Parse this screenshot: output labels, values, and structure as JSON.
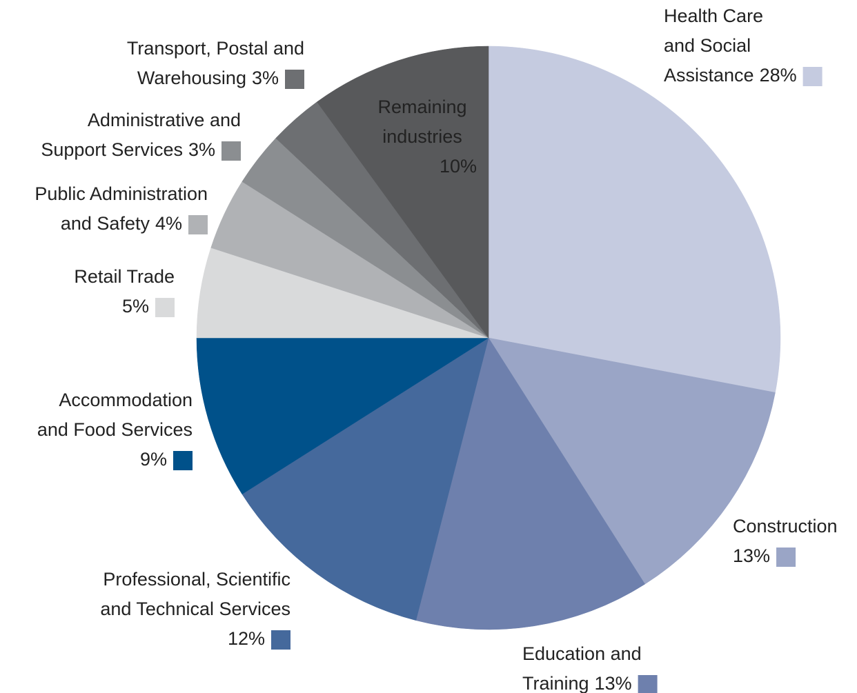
{
  "chart_data": {
    "type": "pie",
    "categories": [
      "Health Care\nand Social\nAssistance",
      "Construction",
      "Education and\nTraining",
      "Professional, Scientific\nand Technical Services",
      "Accommodation\nand Food Services",
      "Retail Trade",
      "Public Administration\nand Safety",
      "Administrative and\nSupport Services",
      "Transport, Postal and\nWarehousing",
      "Remaining\nindustries"
    ],
    "values": [
      28,
      13,
      13,
      12,
      9,
      5,
      4,
      3,
      3,
      10
    ],
    "value_labels": [
      "28%",
      "13%",
      "13%",
      "12%",
      "9%",
      "5%",
      "4%",
      "3%",
      "3%",
      "10%"
    ],
    "colors": [
      "#c5cbe0",
      "#9aa5c6",
      "#6e80ad",
      "#45699c",
      "#00518a",
      "#d9dadb",
      "#b0b2b5",
      "#8b8e91",
      "#6d6f72",
      "#58595b"
    ]
  }
}
